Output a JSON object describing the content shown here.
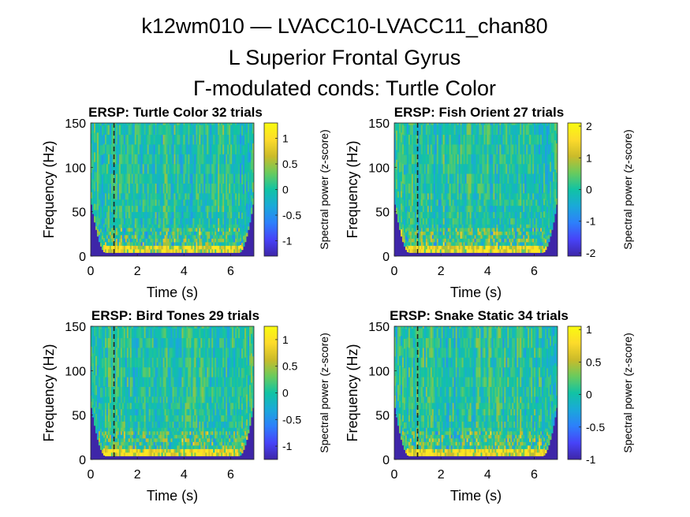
{
  "figure": {
    "title_lines": [
      "k12wm010 — LVACC10-LVACC11_chan80",
      "L Superior Frontal Gyrus",
      "Γ-modulated conds: Turtle Color"
    ]
  },
  "colormap": [
    "#3e26a8",
    "#4743f8",
    "#2d7ffb",
    "#1aa9d9",
    "#11c3a4",
    "#6acb5d",
    "#cbbb2a",
    "#fddb2b",
    "#f9fb0e"
  ],
  "chart_data": [
    {
      "type": "heatmap",
      "title": "ERSP: Turtle Color 32 trials",
      "xlabel": "Time (s)",
      "ylabel": "Frequency (Hz)",
      "xlim": [
        0,
        7
      ],
      "ylim": [
        0,
        150
      ],
      "xticks": [
        0,
        2,
        4,
        6
      ],
      "yticks": [
        0,
        50,
        100,
        150
      ],
      "event_time": 1,
      "colorbar": {
        "label": "Spectral power (z-score)",
        "clim": [
          -1.3,
          1.3
        ],
        "ticks": [
          -1,
          -0.5,
          0,
          0.5,
          1
        ],
        "tick_labels": [
          "-1",
          "-0.5",
          "0",
          "0.5",
          "1"
        ]
      }
    },
    {
      "type": "heatmap",
      "title": "ERSP: Fish Orient 27 trials",
      "xlabel": "Time (s)",
      "ylabel": "Frequency (Hz)",
      "xlim": [
        0,
        7
      ],
      "ylim": [
        0,
        150
      ],
      "xticks": [
        0,
        2,
        4,
        6
      ],
      "yticks": [
        0,
        50,
        100,
        150
      ],
      "event_time": 1,
      "colorbar": {
        "label": "Spectral power (z-score)",
        "clim": [
          -2.1,
          2.1
        ],
        "ticks": [
          -2,
          -1,
          0,
          1,
          2
        ],
        "tick_labels": [
          "-2",
          "-1",
          "0",
          "1",
          "2"
        ]
      }
    },
    {
      "type": "heatmap",
      "title": "ERSP: Bird Tones 29 trials",
      "xlabel": "Time (s)",
      "ylabel": "Frequency (Hz)",
      "xlim": [
        0,
        7
      ],
      "ylim": [
        0,
        150
      ],
      "xticks": [
        0,
        2,
        4,
        6
      ],
      "yticks": [
        0,
        50,
        100,
        150
      ],
      "event_time": 1,
      "colorbar": {
        "label": "Spectral power (z-score)",
        "clim": [
          -1.25,
          1.25
        ],
        "ticks": [
          -1,
          -0.5,
          0,
          0.5,
          1
        ],
        "tick_labels": [
          "-1",
          "-0.5",
          "0",
          "0.5",
          "1"
        ]
      }
    },
    {
      "type": "heatmap",
      "title": "ERSP: Snake Static 34 trials",
      "xlabel": "Time (s)",
      "ylabel": "Frequency (Hz)",
      "xlim": [
        0,
        7
      ],
      "ylim": [
        0,
        150
      ],
      "xticks": [
        0,
        2,
        4,
        6
      ],
      "yticks": [
        0,
        50,
        100,
        150
      ],
      "event_time": 1,
      "colorbar": {
        "label": "Spectral power (z-score)",
        "clim": [
          -1,
          1.05
        ],
        "ticks": [
          -1,
          -0.5,
          0,
          0.5,
          1
        ],
        "tick_labels": [
          "-1",
          "-0.5",
          "0",
          "0.5",
          "1"
        ]
      }
    }
  ]
}
